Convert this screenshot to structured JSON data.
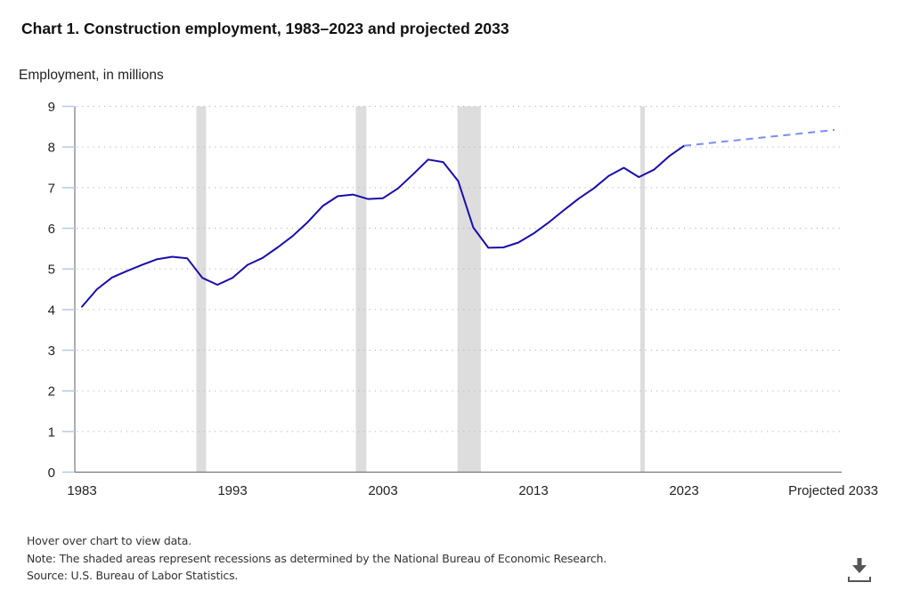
{
  "chart_data": {
    "type": "line",
    "title": "Chart 1. Construction employment, 1983–2023 and projected 2033",
    "ylabel": "Employment, in millions",
    "xlabel": "",
    "ylim": [
      0,
      9
    ],
    "yticks": [
      0,
      1,
      2,
      3,
      4,
      5,
      6,
      7,
      8,
      9
    ],
    "xlim": [
      1983,
      2033
    ],
    "xticks": [
      {
        "value": 1983,
        "label": "1983"
      },
      {
        "value": 1993,
        "label": "1993"
      },
      {
        "value": 2003,
        "label": "2003"
      },
      {
        "value": 2013,
        "label": "2013"
      },
      {
        "value": 2023,
        "label": "2023"
      },
      {
        "value": 2033,
        "label": "Projected 2033"
      }
    ],
    "grid": true,
    "series": [
      {
        "name": "Construction employment",
        "style": "solid",
        "color": "#1a0dab",
        "x": [
          1983,
          1984,
          1985,
          1986,
          1987,
          1988,
          1989,
          1990,
          1991,
          1992,
          1993,
          1994,
          1995,
          1996,
          1997,
          1998,
          1999,
          2000,
          2001,
          2002,
          2003,
          2004,
          2005,
          2006,
          2007,
          2008,
          2009,
          2010,
          2011,
          2012,
          2013,
          2014,
          2015,
          2016,
          2017,
          2018,
          2019,
          2020,
          2021,
          2022,
          2023
        ],
        "values": [
          4.07,
          4.5,
          4.79,
          4.95,
          5.1,
          5.24,
          5.3,
          5.26,
          4.78,
          4.61,
          4.78,
          5.1,
          5.27,
          5.53,
          5.81,
          6.15,
          6.55,
          6.79,
          6.83,
          6.72,
          6.74,
          6.98,
          7.33,
          7.69,
          7.63,
          7.16,
          6.02,
          5.52,
          5.53,
          5.65,
          5.87,
          6.14,
          6.44,
          6.73,
          6.98,
          7.29,
          7.49,
          7.26,
          7.44,
          7.77,
          8.03
        ]
      },
      {
        "name": "Projected",
        "style": "dashed",
        "color": "#7b8cf0",
        "x": [
          2023,
          2033
        ],
        "values": [
          8.03,
          8.42
        ]
      }
    ],
    "recessions": [
      {
        "start": 1990.6,
        "end": 1991.25
      },
      {
        "start": 2001.2,
        "end": 2001.9
      },
      {
        "start": 2007.95,
        "end": 2009.5
      },
      {
        "start": 2020.1,
        "end": 2020.35
      }
    ],
    "colors": {
      "line": "#1a0dab",
      "projection": "#7b8cf0",
      "recession": "#dddddd",
      "grid": "#bbbbbb",
      "axis": "#777777",
      "tick": "#b8c8e6"
    }
  },
  "footer": {
    "hover": "Hover over chart to view data.",
    "note": "Note: The shaded areas represent recessions as determined by the National Bureau of Economic Research.",
    "source": "Source: U.S. Bureau of Labor Statistics."
  },
  "download": {
    "icon": "download-icon"
  }
}
